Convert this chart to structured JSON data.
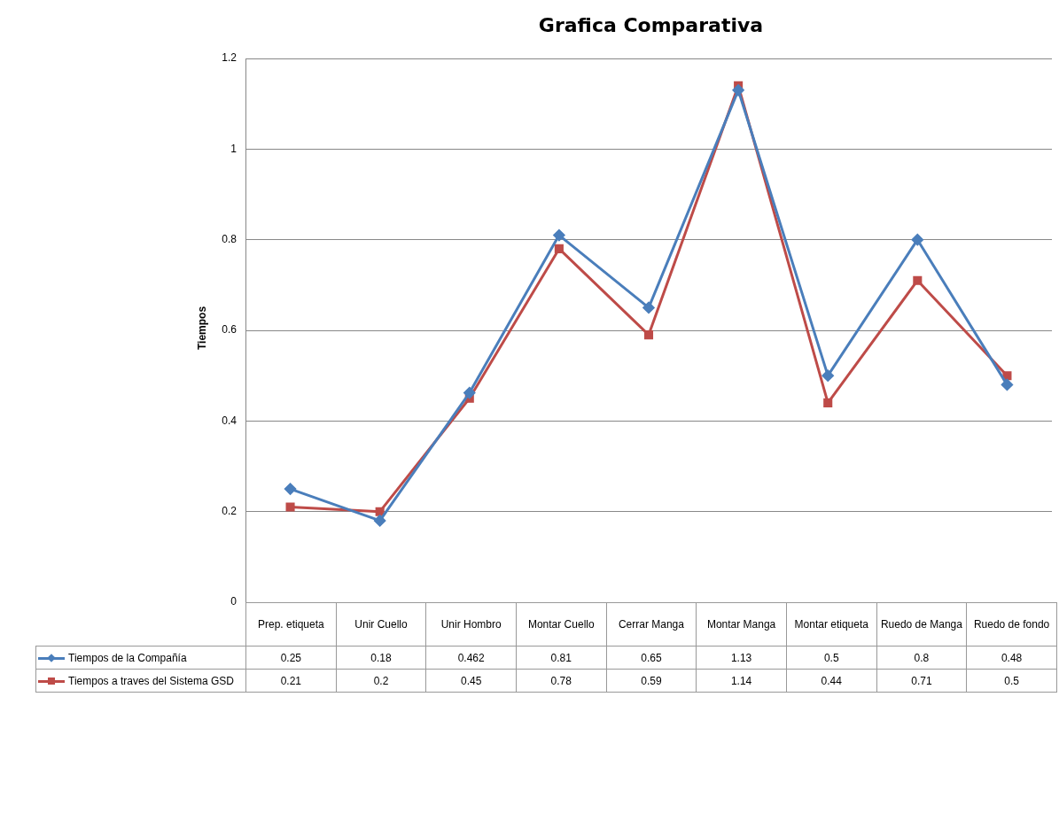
{
  "chart_data": {
    "type": "line",
    "title": "Grafica Comparativa",
    "ylabel": "Tiempos",
    "categories": [
      "Prep. etiqueta",
      "Unir Cuello",
      "Unir Hombro",
      "Montar Cuello",
      "Cerrar Manga",
      "Montar Manga",
      "Montar etiqueta",
      "Ruedo de Manga",
      "Ruedo de fondo"
    ],
    "series": [
      {
        "name": "Tiempos de la Compañía",
        "color": "#4a7ebb",
        "marker": "diamond",
        "values": [
          0.25,
          0.18,
          0.462,
          0.81,
          0.65,
          1.13,
          0.5,
          0.8,
          0.48
        ]
      },
      {
        "name": "Tiempos a traves del Sistema GSD",
        "color": "#be4b48",
        "marker": "square",
        "values": [
          0.21,
          0.2,
          0.45,
          0.78,
          0.59,
          1.14,
          0.44,
          0.71,
          0.5
        ]
      }
    ],
    "ylim": [
      0,
      1.2
    ],
    "yticks": [
      0,
      0.2,
      0.4,
      0.6,
      0.8,
      1,
      1.2
    ],
    "grid": "y",
    "legend": "bottom left",
    "data_labels": true,
    "line_style": "solid"
  }
}
